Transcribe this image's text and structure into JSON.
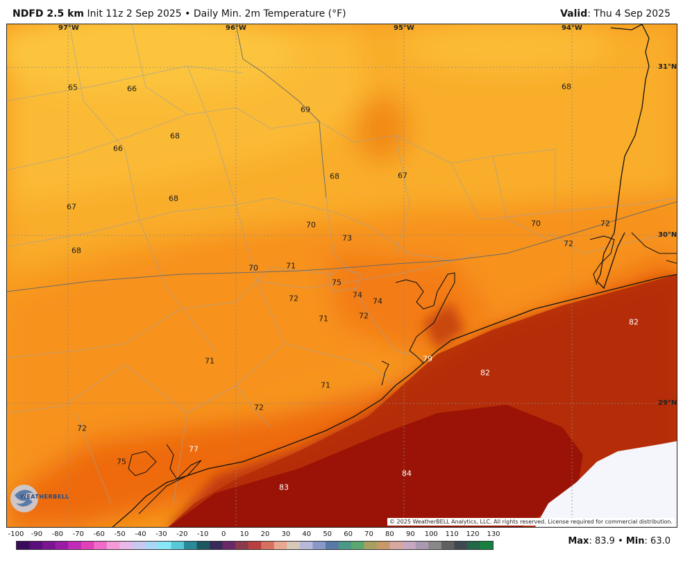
{
  "header": {
    "product": "NDFD 2.5 km",
    "init": "Init 11z 2 Sep 2025",
    "separator": "•",
    "field": "Daily Min. 2m Temperature (°F)",
    "valid_label": "Valid",
    "valid_value": ": Thu 4 Sep 2025"
  },
  "map": {
    "longitudes": [
      "97°W",
      "96°W",
      "95°W",
      "94°W"
    ],
    "latitudes": [
      "31°N",
      "30°N",
      "29°N"
    ],
    "values": [
      "65",
      "66",
      "69",
      "68",
      "68",
      "66",
      "68",
      "67",
      "67",
      "68",
      "70",
      "73",
      "70",
      "72",
      "72",
      "70",
      "71",
      "68",
      "75",
      "74",
      "74",
      "72",
      "71",
      "72",
      "82",
      "79",
      "71",
      "82",
      "71",
      "72",
      "72",
      "77",
      "75",
      "84",
      "83"
    ],
    "copyright": "© 2025 WeatherBELL Analytics, LLC. All rights reserved. License required for commercial distribution.",
    "logo_text": "WEATHERBELL"
  },
  "colorbar": {
    "ticks": [
      "-100",
      "-90",
      "-80",
      "-70",
      "-60",
      "-50",
      "-40",
      "-30",
      "-20",
      "-10",
      "0",
      "10",
      "20",
      "30",
      "40",
      "50",
      "60",
      "70",
      "80",
      "90",
      "100",
      "110",
      "120",
      "130"
    ],
    "colors": [
      "#3b0a5c",
      "#5a0f7a",
      "#7a1490",
      "#9a1ca6",
      "#c22ab8",
      "#e040b8",
      "#f06ac8",
      "#f59ad8",
      "#e8b8e8",
      "#c8c8f0",
      "#a8d8f8",
      "#88e8f8",
      "#58c8d8",
      "#2a8898",
      "#1a5860",
      "#3a2a5a",
      "#6a2a6a",
      "#8a3a4a",
      "#b84040",
      "#d87060",
      "#e8a890",
      "#d8c8b8",
      "#b8b8d8",
      "#8898c8",
      "#5878a8",
      "#4a9888",
      "#5aa870",
      "#a8a060",
      "#c89868",
      "#d8a8a0",
      "#c8a8c0",
      "#a898b0",
      "#888888",
      "#606060",
      "#404850",
      "#206848",
      "#188040"
    ]
  },
  "stats": {
    "max_label": "Max",
    "max_value": ": 83.9",
    "sep": "•",
    "min_label": "Min",
    "min_value": ": 63.0"
  }
}
